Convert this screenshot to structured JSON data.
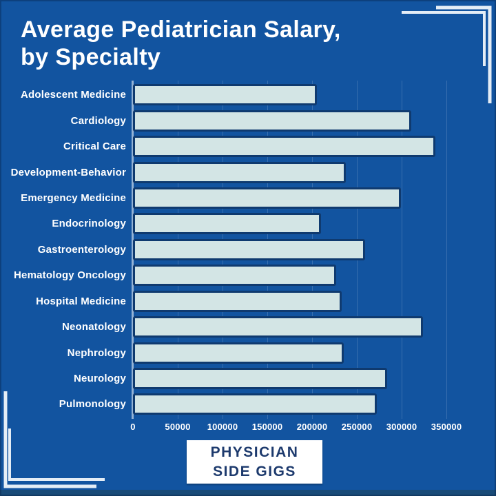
{
  "theme": {
    "bg": "#1254a0",
    "text": "#ffffff",
    "bar_fill": "#d3e5e5",
    "bar_border": "#0f3a6f",
    "badge_bg": "#ffffff",
    "badge_text": "#1d3a6d",
    "corner_line": "#e4edf6"
  },
  "header": {
    "title_lines": [
      "Average Pediatrician Salary,",
      "by Specialty"
    ]
  },
  "chart_data": {
    "type": "bar",
    "orientation": "horizontal",
    "title": "Average Pediatrician Salary, by Specialty",
    "xlabel": "",
    "ylabel": "",
    "categories": [
      "Adolescent Medicine",
      "Cardiology",
      "Critical Care",
      "Development-Behavior",
      "Emergency Medicine",
      "Endocrinology",
      "Gastroenterology",
      "Hematology Oncology",
      "Hospital Medicine",
      "Neonatology",
      "Nephrology",
      "Neurology",
      "Pulmonology"
    ],
    "values": [
      205000,
      311000,
      338000,
      238000,
      299000,
      210000,
      259000,
      227000,
      233000,
      324000,
      235000,
      284000,
      272000
    ],
    "xlim": [
      0,
      350000
    ],
    "x_ticks": [
      0,
      50000,
      100000,
      150000,
      200000,
      250000,
      300000,
      350000
    ],
    "x_tick_labels": [
      "0",
      "50000",
      "100000",
      "150000",
      "200000",
      "250000",
      "300000",
      "350000"
    ],
    "grid": "faint vertical gridlines at x ticks",
    "legend": "none"
  },
  "footer": {
    "brand_lines": [
      "PHYSICIAN",
      "SIDE GIGS"
    ]
  }
}
